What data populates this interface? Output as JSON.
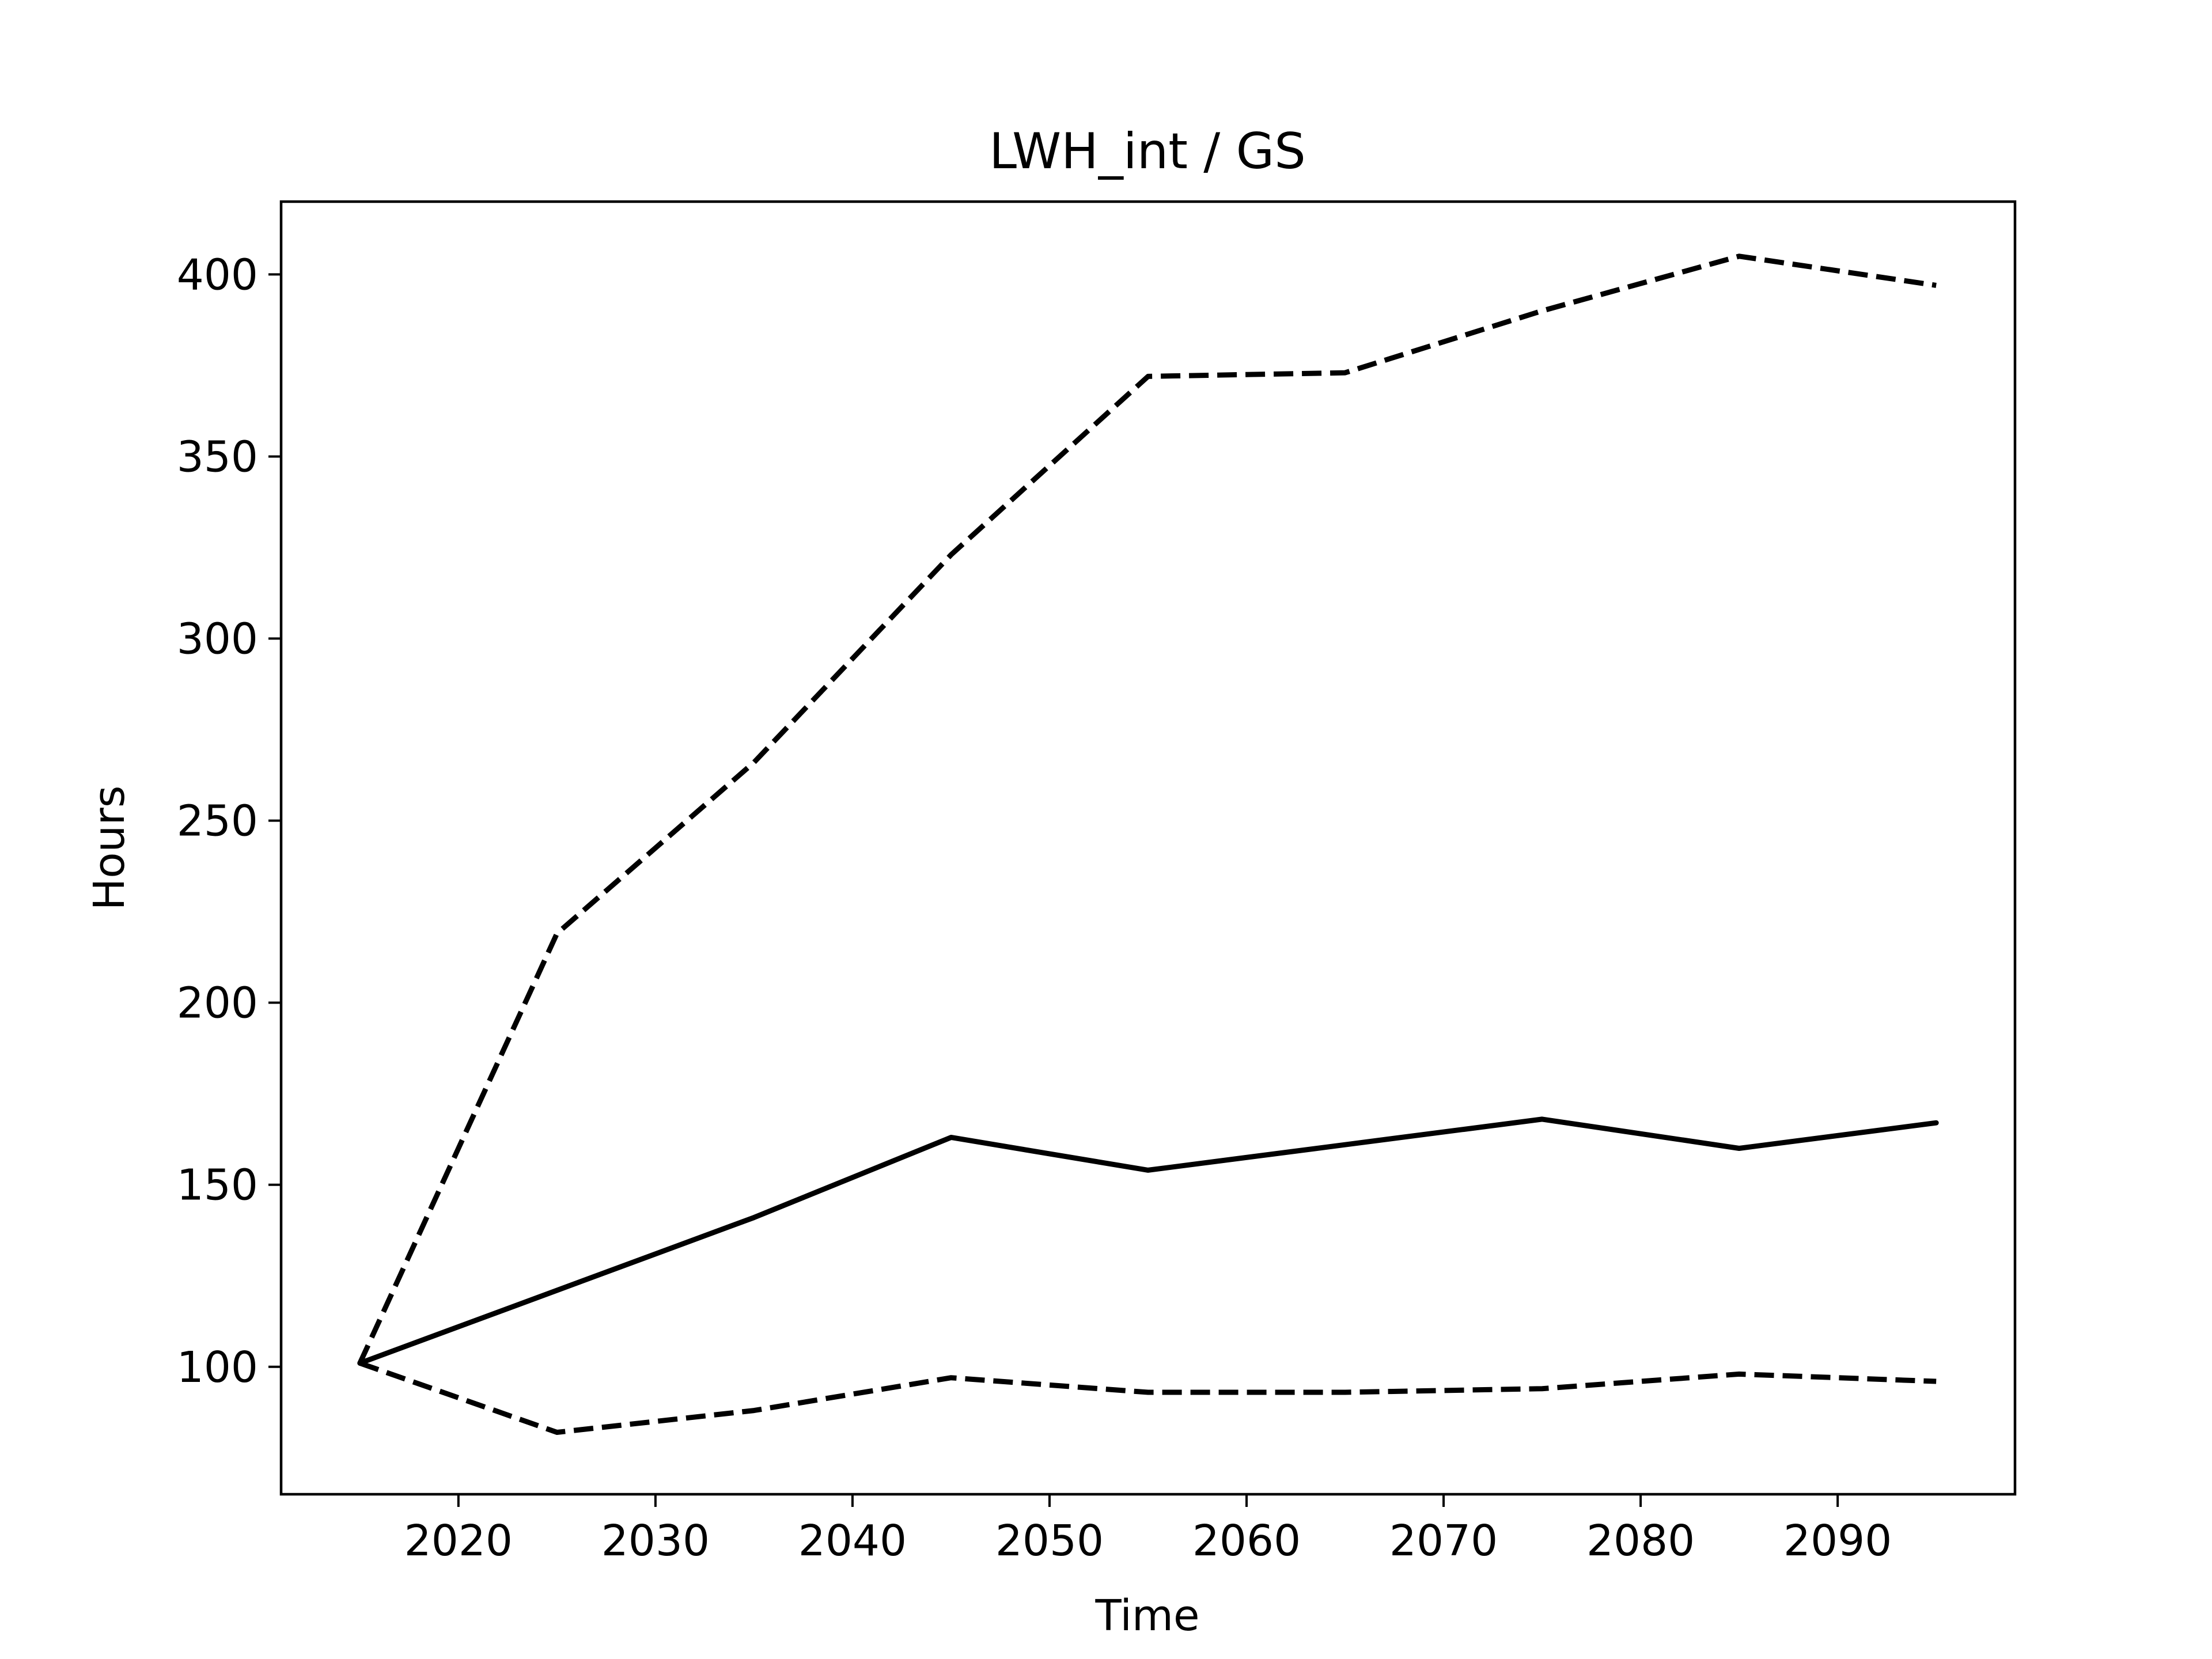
{
  "chart_data": {
    "type": "line",
    "title": "LWH_int / GS",
    "xlabel": "Time",
    "ylabel": "Hours",
    "xlim": [
      2011,
      2099
    ],
    "ylim": [
      65,
      420
    ],
    "x_ticks": [
      2020,
      2030,
      2040,
      2050,
      2060,
      2070,
      2080,
      2090
    ],
    "y_ticks": [
      100,
      150,
      200,
      250,
      300,
      350,
      400
    ],
    "grid": false,
    "legend": "none",
    "colors": {
      "line": "#000000",
      "axes": "#000000",
      "background": "#ffffff"
    },
    "x": [
      2015,
      2025,
      2035,
      2045,
      2055,
      2065,
      2075,
      2085,
      2095
    ],
    "series": [
      {
        "style": "solid",
        "values": [
          101,
          121,
          141,
          163,
          154,
          161,
          168,
          160,
          167
        ]
      },
      {
        "style": "dashed",
        "values": [
          101,
          219,
          266,
          323,
          372,
          373,
          390,
          405,
          397
        ]
      },
      {
        "style": "dashed",
        "values": [
          101,
          82,
          88,
          97,
          93,
          93,
          94,
          98,
          96
        ]
      }
    ]
  }
}
